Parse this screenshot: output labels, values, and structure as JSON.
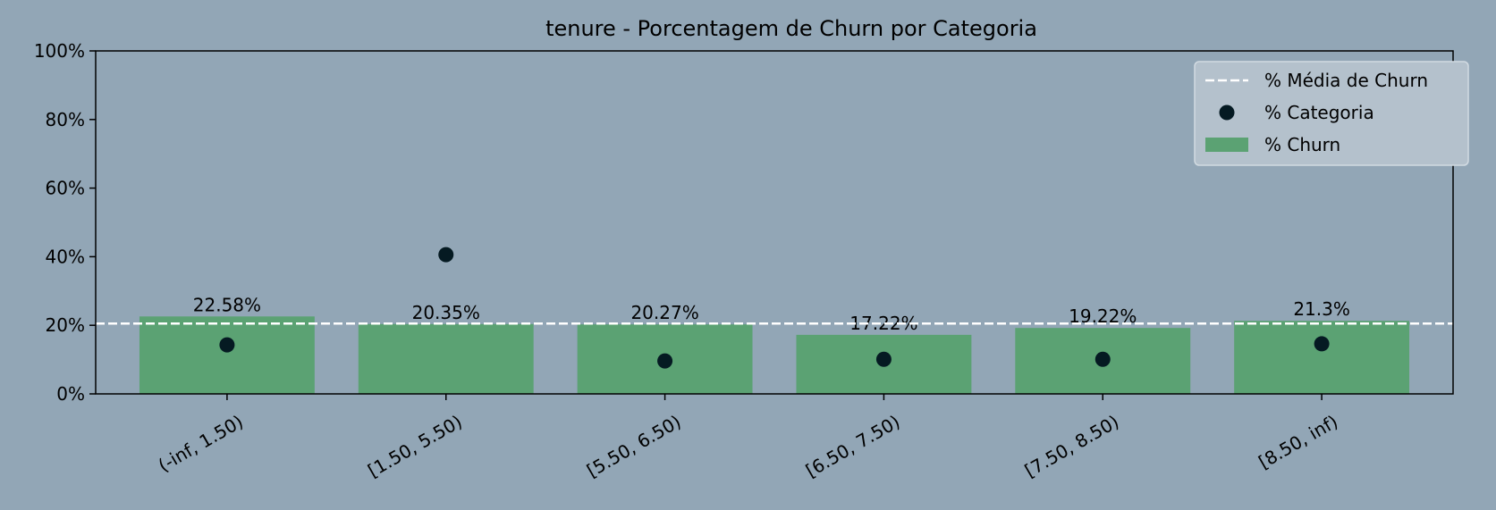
{
  "chart_data": {
    "type": "bar",
    "title": "tenure - Porcentagem de Churn por Categoria",
    "xlabel": "",
    "ylabel": "",
    "categories": [
      "(-inf, 1.50)",
      "[1.50, 5.50)",
      "[5.50, 6.50)",
      "[6.50, 7.50)",
      "[7.50, 8.50)",
      "[8.50, inf)"
    ],
    "series": [
      {
        "name": "% Churn",
        "type": "bar",
        "values": [
          22.58,
          20.35,
          20.27,
          17.22,
          19.22,
          21.3
        ],
        "labels": [
          "22.58%",
          "20.35%",
          "20.27%",
          "17.22%",
          "19.22%",
          "21.3%"
        ],
        "color": "#5ba273"
      },
      {
        "name": "% Categoria",
        "type": "scatter",
        "values": [
          14.3,
          40.6,
          9.6,
          10.1,
          10.1,
          14.6
        ],
        "color": "#051a22"
      },
      {
        "name": "% Média de Churn",
        "type": "hline",
        "value": 20.5,
        "color": "#ffffff"
      }
    ],
    "ylim": [
      0,
      100
    ],
    "yticks": [
      0,
      20,
      40,
      60,
      80,
      100
    ],
    "ytick_labels": [
      "0%",
      "20%",
      "40%",
      "60%",
      "80%",
      "100%"
    ],
    "grid": false,
    "legend_position": "top-right",
    "legend_order": [
      "% Média de Churn",
      "% Categoria",
      "% Churn"
    ],
    "background": "#92a6b6"
  }
}
